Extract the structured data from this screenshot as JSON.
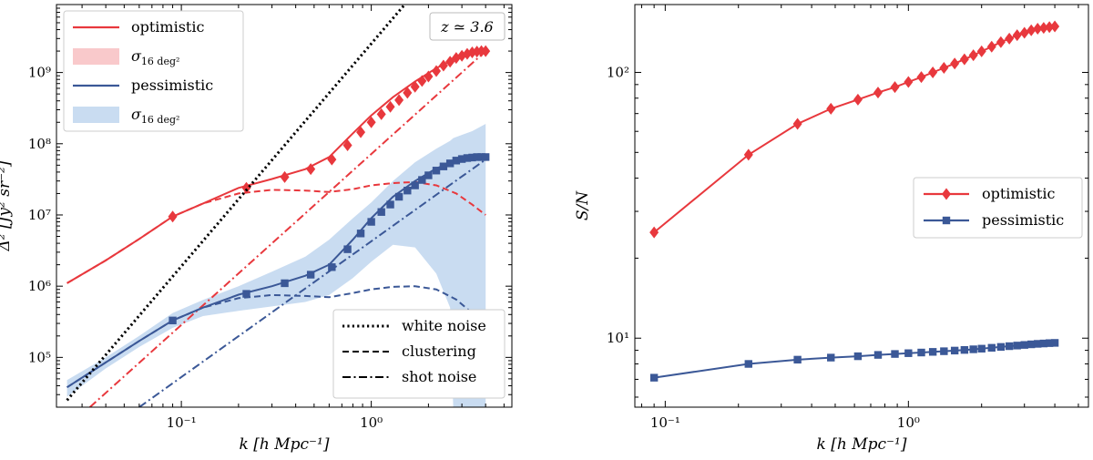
{
  "colors": {
    "optimistic": "#e8383d",
    "pessimistic": "#3b5897",
    "opt_band": "#f9c9cb",
    "pes_band": "#c9dcf1",
    "axis": "#000000"
  },
  "chart_data": [
    {
      "type": "line",
      "scale": "loglog",
      "xlabel": "k [h Mpc⁻¹]",
      "ylabel": "Δ² [Jy² sr⁻²]",
      "xlim": [
        0.022,
        5.5
      ],
      "ylim": [
        20000,
        9000000000
      ],
      "annotation": "z ≃ 3.6",
      "xticks": [
        {
          "v": 0.1,
          "label": "10⁻¹"
        },
        {
          "v": 1,
          "label": "10⁰"
        }
      ],
      "yticks": [
        {
          "v": 100000,
          "label": "10⁵"
        },
        {
          "v": 1000000,
          "label": "10⁶"
        },
        {
          "v": 10000000,
          "label": "10⁷"
        },
        {
          "v": 100000000,
          "label": "10⁸"
        },
        {
          "v": 1000000000,
          "label": "10⁹"
        }
      ],
      "series": [
        {
          "name": "optimistic",
          "style": "solid",
          "x": [
            0.025,
            0.04,
            0.06,
            0.09,
            0.13,
            0.2,
            0.3,
            0.45,
            0.6,
            0.8,
            1.0,
            1.3,
            1.7,
            2.2,
            2.8,
            3.4,
            4.0
          ],
          "y": [
            1100000,
            2300000,
            4600000,
            9500000,
            14500000,
            24000000,
            32000000,
            44000000,
            65000000,
            140000000,
            250000000,
            450000000,
            750000000,
            1150000000,
            1600000000,
            1900000000,
            2000000000
          ]
        },
        {
          "name": "optimistic clustering",
          "style": "dashed",
          "x": [
            0.025,
            0.04,
            0.06,
            0.09,
            0.13,
            0.2,
            0.3,
            0.45,
            0.6,
            0.8,
            1.0,
            1.3,
            1.7,
            2.2,
            2.8,
            3.4,
            4.0
          ],
          "y": [
            1100000,
            2300000,
            4600000,
            9500000,
            14500000,
            20000000,
            22500000,
            22000000,
            21000000,
            23000000,
            26000000,
            28000000,
            29000000,
            26000000,
            20000000,
            14000000,
            10000000
          ]
        },
        {
          "name": "optimistic shot noise",
          "style": "dashdot",
          "x": [
            0.033,
            4.0
          ],
          "y": [
            20000,
            2000000000
          ]
        },
        {
          "name": "optimistic markers",
          "style": "markers",
          "marker": "diamond",
          "x": [
            0.09,
            0.22,
            0.35,
            0.48,
            0.62,
            0.75,
            0.88,
            1.0,
            1.13,
            1.26,
            1.4,
            1.55,
            1.7,
            1.85,
            2.0,
            2.2,
            2.4,
            2.6,
            2.8,
            3.0,
            3.2,
            3.4,
            3.6,
            3.8,
            4.0
          ],
          "y": [
            9500000,
            24000000,
            34000000,
            44000000,
            60000000,
            95000000,
            145000000,
            200000000,
            260000000,
            330000000,
            410000000,
            520000000,
            630000000,
            760000000,
            880000000,
            1050000000,
            1250000000,
            1420000000,
            1600000000,
            1720000000,
            1830000000,
            1920000000,
            1970000000,
            2000000000,
            2000000000
          ]
        },
        {
          "name": "pessimistic",
          "style": "solid",
          "x": [
            0.025,
            0.04,
            0.06,
            0.09,
            0.13,
            0.2,
            0.3,
            0.45,
            0.6,
            0.8,
            1.0,
            1.3,
            1.7,
            2.2,
            2.8,
            3.4,
            4.0
          ],
          "y": [
            38000,
            85000,
            170000,
            330000,
            500000,
            760000,
            1000000,
            1400000,
            2000000,
            4500000,
            9000000,
            18000000,
            30000000,
            45000000,
            58000000,
            64000000,
            65000000
          ]
        },
        {
          "name": "pessimistic clustering",
          "style": "dashed",
          "x": [
            0.025,
            0.04,
            0.06,
            0.09,
            0.13,
            0.2,
            0.3,
            0.45,
            0.6,
            0.8,
            1.0,
            1.3,
            1.7,
            2.2,
            2.8,
            3.4,
            4.0
          ],
          "y": [
            38000,
            85000,
            170000,
            330000,
            500000,
            680000,
            750000,
            730000,
            700000,
            800000,
            900000,
            980000,
            1000000,
            900000,
            650000,
            420000,
            320000
          ]
        },
        {
          "name": "pessimistic shot noise",
          "style": "dashdot",
          "x": [
            0.06,
            4.0
          ],
          "y": [
            20000,
            60000000
          ]
        },
        {
          "name": "pessimistic markers",
          "style": "markers",
          "marker": "square",
          "x": [
            0.09,
            0.22,
            0.35,
            0.48,
            0.62,
            0.75,
            0.88,
            1.0,
            1.13,
            1.26,
            1.4,
            1.55,
            1.7,
            1.85,
            2.0,
            2.2,
            2.4,
            2.6,
            2.8,
            3.0,
            3.2,
            3.4,
            3.6,
            3.8,
            4.0
          ],
          "y": [
            330000,
            780000,
            1100000,
            1450000,
            1850000,
            3300000,
            5500000,
            8000000,
            11000000,
            14000000,
            18000000,
            22000000,
            26000000,
            31000000,
            36000000,
            42000000,
            48000000,
            53000000,
            58000000,
            61000000,
            63000000,
            64000000,
            65000000,
            65000000,
            65000000
          ]
        },
        {
          "name": "white noise",
          "style": "dotted",
          "x": [
            0.025,
            1.5
          ],
          "y": [
            25000,
            9000000000
          ]
        }
      ],
      "bands": [
        {
          "name": "pessimistic band",
          "x": [
            0.025,
            0.04,
            0.06,
            0.09,
            0.13,
            0.2,
            0.3,
            0.45,
            0.6,
            0.8,
            1.0,
            1.3,
            1.7,
            2.2,
            2.6,
            2.7,
            3.4,
            4.0
          ],
          "lower": [
            28000,
            70000,
            140000,
            260000,
            380000,
            450000,
            520000,
            600000,
            750000,
            1300000,
            2200000,
            3800000,
            3500000,
            1500000,
            500000,
            20000,
            20000,
            20000
          ],
          "upper": [
            48000,
            100000,
            200000,
            420000,
            640000,
            1000000,
            1600000,
            2600000,
            4500000,
            9000000,
            15000000,
            30000000,
            55000000,
            85000000,
            110000000,
            120000000,
            150000000,
            190000000
          ]
        }
      ],
      "legend": {
        "placement": "upper-left",
        "entries": [
          {
            "label": "optimistic",
            "kind": "line",
            "color": "optimistic"
          },
          {
            "label": "σ",
            "sub": "16 deg²",
            "kind": "band",
            "color": "opt_band"
          },
          {
            "label": "pessimistic",
            "kind": "line",
            "color": "pessimistic"
          },
          {
            "label": "σ",
            "sub": "16 deg²",
            "kind": "band",
            "color": "pes_band"
          }
        ]
      },
      "style_legend": {
        "placement": "lower-right",
        "entries": [
          {
            "label": "white noise",
            "style": "dotted"
          },
          {
            "label": "clustering",
            "style": "dashed"
          },
          {
            "label": "shot noise",
            "style": "dashdot"
          }
        ]
      }
    },
    {
      "type": "line",
      "scale": "loglog",
      "xlabel": "k [h Mpc⁻¹]",
      "ylabel": "S/N",
      "xlim": [
        0.075,
        5.5
      ],
      "ylim": [
        5.5,
        180
      ],
      "xticks": [
        {
          "v": 0.1,
          "label": "10⁻¹"
        },
        {
          "v": 1,
          "label": "10⁰"
        }
      ],
      "yticks": [
        {
          "v": 10,
          "label": "10¹"
        },
        {
          "v": 100,
          "label": "10²"
        }
      ],
      "series": [
        {
          "name": "optimistic",
          "marker": "diamond",
          "x": [
            0.09,
            0.22,
            0.35,
            0.48,
            0.62,
            0.75,
            0.88,
            1.0,
            1.13,
            1.26,
            1.4,
            1.55,
            1.7,
            1.85,
            2.0,
            2.2,
            2.4,
            2.6,
            2.8,
            3.0,
            3.2,
            3.4,
            3.6,
            3.8,
            4.0
          ],
          "y": [
            25,
            49,
            64,
            73,
            79,
            84,
            88,
            92,
            96,
            100,
            104,
            108,
            112,
            116,
            120,
            125,
            130,
            134,
            138,
            141,
            144,
            146,
            147,
            148,
            149
          ]
        },
        {
          "name": "pessimistic",
          "marker": "square",
          "x": [
            0.09,
            0.22,
            0.35,
            0.48,
            0.62,
            0.75,
            0.88,
            1.0,
            1.13,
            1.26,
            1.4,
            1.55,
            1.7,
            1.85,
            2.0,
            2.2,
            2.4,
            2.6,
            2.8,
            3.0,
            3.2,
            3.4,
            3.6,
            3.8,
            4.0
          ],
          "y": [
            7.1,
            8.0,
            8.3,
            8.45,
            8.55,
            8.65,
            8.72,
            8.78,
            8.83,
            8.88,
            8.93,
            8.98,
            9.03,
            9.08,
            9.13,
            9.2,
            9.27,
            9.33,
            9.38,
            9.43,
            9.48,
            9.52,
            9.55,
            9.58,
            9.6
          ]
        }
      ],
      "legend": {
        "placement": "center-right",
        "entries": [
          {
            "label": "optimistic",
            "color": "optimistic",
            "marker": "diamond"
          },
          {
            "label": "pessimistic",
            "color": "pessimistic",
            "marker": "square"
          }
        ]
      }
    }
  ]
}
